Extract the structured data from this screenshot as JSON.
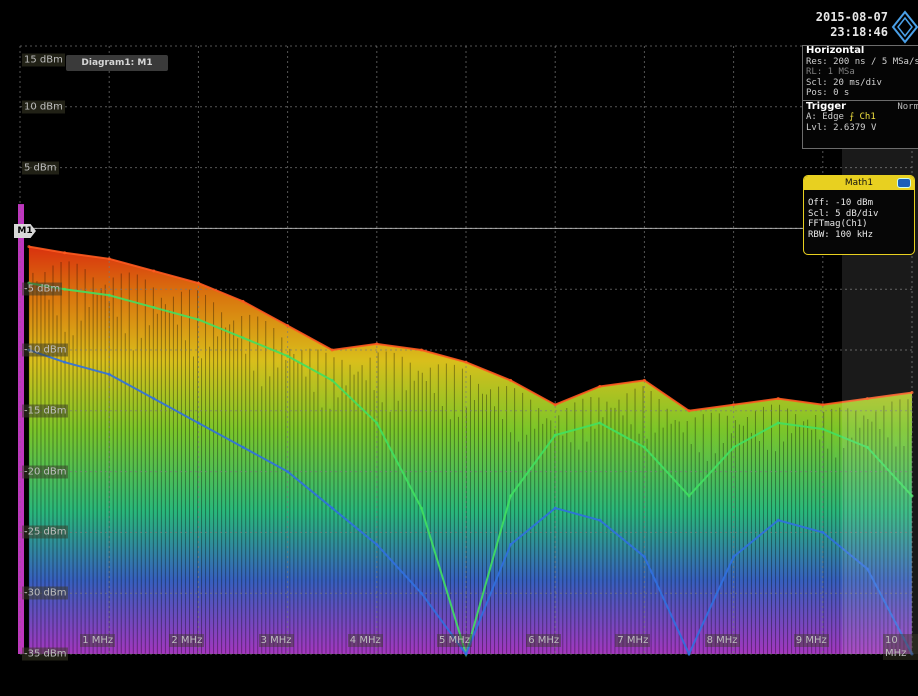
{
  "header": {
    "date": "2015-08-07",
    "time": "23:18:46",
    "logo": "rohde-schwarz-diamond-logo"
  },
  "diagram_tab": "Diagram1: M1",
  "marker_label": "M1",
  "horizontal_panel": {
    "title": "Horizontal",
    "res": "Res: 200 ns / 5 MSa/s",
    "rl": "RL: 1 MSa",
    "rl_right": "P",
    "scl": "Scl: 20 ms/div",
    "pos": "Pos: 0 s",
    "trigger_title": "Trigger",
    "trigger_mode": "Norm",
    "trigger_a_label": "A:",
    "trigger_a_type": "Edge",
    "trigger_a_channel": "Ch1",
    "trigger_level": "Lvl: 2.6379 V"
  },
  "math_panel": {
    "title": "Math1",
    "off": "Off:  -10 dBm",
    "scl": "Scl:  5 dB/div",
    "func": "FFTmag(Ch1)",
    "rbw": "RBW: 100 kHz"
  },
  "colors": {
    "background": "#000000",
    "grid": "#7a7a7a",
    "math_accent": "#e8d020",
    "trigger_yellow": "#f0e040"
  },
  "chart_data": {
    "type": "heatmap",
    "title": "Diagram1: M1",
    "xlabel": "",
    "ylabel": "",
    "y_unit": "dBm",
    "x_unit": "MHz",
    "ylim": [
      -35,
      15
    ],
    "xlim": [
      0,
      10
    ],
    "y_ticks": [
      "15 dBm",
      "10 dBm",
      "5 dBm",
      "0 dBm",
      "-5 dBm",
      "-10 dBm",
      "-15 dBm",
      "-20 dBm",
      "-25 dBm",
      "-30 dBm",
      "-35 dBm"
    ],
    "y_tick_values": [
      15,
      10,
      5,
      0,
      -5,
      -10,
      -15,
      -20,
      -25,
      -30,
      -35
    ],
    "x_ticks": [
      "1 MHz",
      "2 MHz",
      "3 MHz",
      "4 MHz",
      "5 MHz",
      "6 MHz",
      "7 MHz",
      "8 MHz",
      "9 MHz",
      "10 MHz"
    ],
    "x_tick_values": [
      1,
      2,
      3,
      4,
      5,
      6,
      7,
      8,
      9,
      10
    ],
    "grid": true,
    "series": [
      {
        "x": [
          0.1,
          0.5,
          1,
          1.5,
          2,
          2.5,
          3,
          3.5,
          4,
          4.5,
          5,
          5.5,
          6,
          6.5,
          7,
          7.5,
          8,
          8.5,
          9,
          9.5,
          10
        ],
        "values": [
          -1.5,
          -2,
          -2.5,
          -3.5,
          -4.5,
          -6,
          -8,
          -10,
          -9.5,
          -10,
          -11,
          -12.5,
          -14.5,
          -13,
          -12.5,
          -15,
          -14.5,
          -14,
          -14.5,
          -14,
          -13.5
        ]
      },
      {
        "x": [
          0.1,
          0.5,
          1,
          1.5,
          2,
          2.5,
          3,
          3.5,
          4,
          4.5,
          5,
          5.5,
          6,
          6.5,
          7,
          7.5,
          8,
          8.5,
          9,
          9.5,
          10
        ],
        "values": [
          -4.5,
          -5,
          -5.5,
          -6.5,
          -7.5,
          -9,
          -10.5,
          -12.5,
          -16,
          -23,
          -35,
          -22,
          -17,
          -16,
          -18,
          -22,
          -18,
          -16,
          -16.5,
          -18,
          -22
        ]
      },
      {
        "x": [
          0.1,
          0.5,
          1,
          1.5,
          2,
          2.5,
          3,
          3.5,
          4,
          4.5,
          5,
          5.5,
          6,
          6.5,
          7,
          7.5,
          8,
          8.5,
          9,
          9.5,
          10
        ],
        "values": [
          -10,
          -11,
          -12,
          -14,
          -16,
          -18,
          -20,
          -23,
          -26,
          -30,
          -35,
          -26,
          -23,
          -24,
          -27,
          -35,
          -27,
          -24,
          -25,
          -28,
          -35
        ]
      }
    ]
  }
}
